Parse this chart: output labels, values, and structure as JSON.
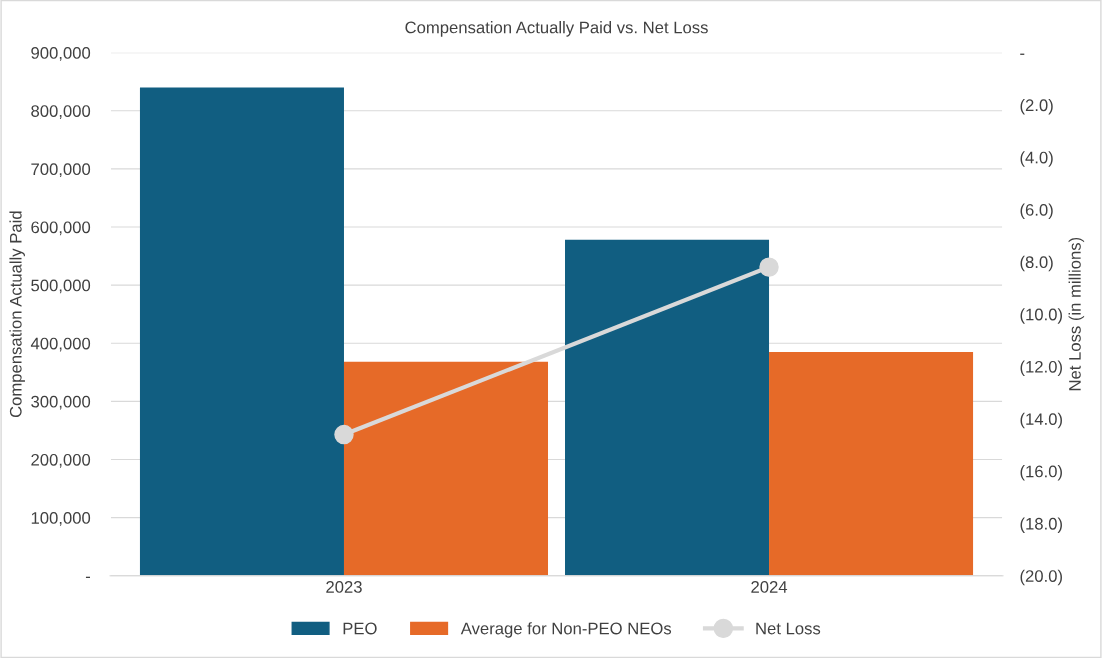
{
  "chart_data": {
    "type": "bar",
    "title": "Compensation Actually Paid vs. Net Loss",
    "ylabel": "Compensation Actually Paid",
    "y2label": "Net Loss (in millions)",
    "categories": [
      "2023",
      "2024"
    ],
    "series": [
      {
        "name": "PEO",
        "color": "#115e81",
        "values": [
          840000,
          578000
        ]
      },
      {
        "name": "Average for Non-PEO NEOs",
        "color": "#e66a28",
        "values": [
          368000,
          385000
        ]
      },
      {
        "name": "Net Loss",
        "color": "#d9d9d9",
        "type": "line",
        "axis": "y2",
        "marker": "circle",
        "values": [
          -14.6,
          -8.2
        ]
      }
    ],
    "ylim": [
      0,
      900000
    ],
    "yticks": [
      {
        "value": 0,
        "label": "-"
      },
      {
        "value": 100000,
        "label": "100,000"
      },
      {
        "value": 200000,
        "label": "200,000"
      },
      {
        "value": 300000,
        "label": "300,000"
      },
      {
        "value": 400000,
        "label": "400,000"
      },
      {
        "value": 500000,
        "label": "500,000"
      },
      {
        "value": 600000,
        "label": "600,000"
      },
      {
        "value": 700000,
        "label": "700,000"
      },
      {
        "value": 800000,
        "label": "800,000"
      },
      {
        "value": 900000,
        "label": "900,000"
      }
    ],
    "y2lim": [
      -20,
      0
    ],
    "y2ticks": [
      {
        "value": -20,
        "label": "(20.0)"
      },
      {
        "value": -18,
        "label": "(18.0)"
      },
      {
        "value": -16,
        "label": "(16.0)"
      },
      {
        "value": -14,
        "label": "(14.0)"
      },
      {
        "value": -12,
        "label": "(12.0)"
      },
      {
        "value": -10,
        "label": "(10.0)"
      },
      {
        "value": -8,
        "label": "(8.0)"
      },
      {
        "value": -6,
        "label": "(6.0)"
      },
      {
        "value": -4,
        "label": "(4.0)"
      },
      {
        "value": -2,
        "label": "(2.0)"
      },
      {
        "value": 0,
        "label": "-"
      }
    ],
    "grid": "y",
    "legend": "bottom"
  }
}
